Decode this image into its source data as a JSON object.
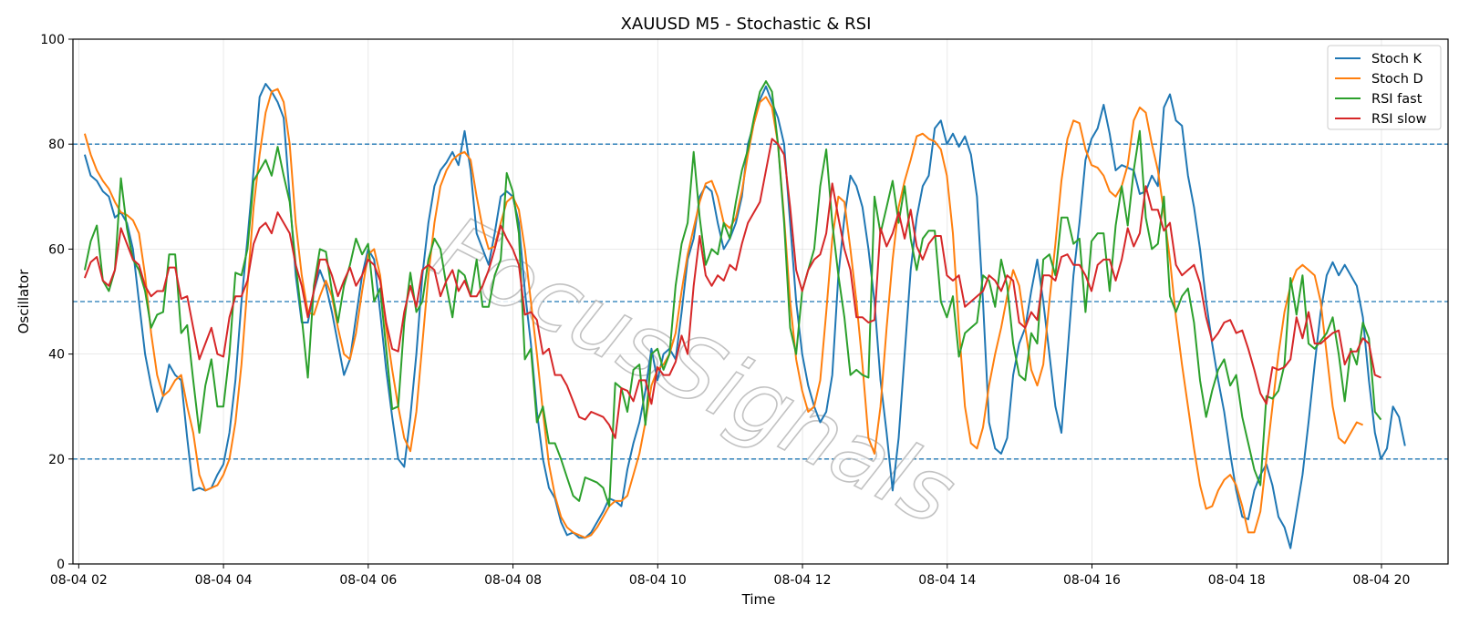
{
  "chart_data": {
    "type": "line",
    "title": "XAUUSD M5 - Stochastic & RSI",
    "xlabel": "Time",
    "ylabel": "Oscillator",
    "xlim": [
      1.92,
      20.92
    ],
    "ylim": [
      0,
      100
    ],
    "x_ticks": [
      2,
      4,
      6,
      8,
      10,
      12,
      14,
      16,
      18,
      20
    ],
    "x_tick_labels": [
      "08-04 02",
      "08-04 04",
      "08-04 06",
      "08-04 08",
      "08-04 10",
      "08-04 12",
      "08-04 14",
      "08-04 16",
      "08-04 18",
      "08-04 20"
    ],
    "y_ticks": [
      0,
      20,
      40,
      60,
      80,
      100
    ],
    "y_tick_labels": [
      "0",
      "20",
      "40",
      "60",
      "80",
      "100"
    ],
    "grid": true,
    "legend_position": "top-right",
    "watermark": "FocusSignals",
    "reference_lines": [
      {
        "y": 80,
        "style": "dashed",
        "color": "#1f77b4"
      },
      {
        "y": 50,
        "style": "dashed",
        "color": "#1f77b4"
      },
      {
        "y": 20,
        "style": "dashed",
        "color": "#1f77b4"
      }
    ],
    "x_start_hour": 2.083,
    "x_step_hours": 0.0833,
    "series": [
      {
        "name": "Stoch K",
        "color": "#1f77b4",
        "values": [
          78,
          74,
          73,
          71,
          70,
          66,
          67,
          65,
          60,
          50,
          40,
          34,
          29,
          32,
          38,
          36,
          35,
          24,
          14,
          14.5,
          14,
          14.5,
          17,
          19,
          25,
          35,
          50,
          62,
          75,
          89,
          91.5,
          90,
          88,
          85,
          70,
          55,
          46,
          46,
          52,
          56,
          53,
          48,
          42,
          36,
          39,
          47,
          55,
          60,
          58,
          48,
          37,
          28,
          20,
          18.5,
          28,
          40,
          55,
          65,
          72,
          75,
          76.5,
          78.5,
          76,
          82.5,
          75,
          63,
          60,
          57,
          63,
          70,
          71,
          70,
          65,
          52,
          42,
          29,
          20,
          14.5,
          12.5,
          8,
          5.5,
          6,
          5,
          5,
          6,
          8,
          10,
          12.5,
          12,
          11,
          18,
          23,
          27,
          33,
          41,
          35,
          40,
          41,
          39,
          48,
          58,
          62,
          70,
          72,
          71,
          65,
          60,
          62,
          65,
          70,
          80,
          84,
          88.5,
          91,
          88,
          85,
          80,
          65,
          50,
          40,
          34,
          30,
          27,
          29,
          36,
          55,
          66,
          74,
          72,
          68,
          60,
          50,
          35,
          25,
          14,
          24,
          40,
          56,
          66,
          72,
          74,
          83,
          84.5,
          80,
          82,
          79.5,
          81.5,
          78,
          70,
          50,
          27,
          22,
          21,
          24,
          36,
          42,
          45,
          52,
          58,
          50,
          40,
          30,
          25,
          40,
          55,
          65,
          77,
          81,
          83,
          87.5,
          82,
          75,
          76,
          75.5,
          75,
          70.5,
          71,
          74,
          72,
          87,
          89.5,
          84.5,
          83.5,
          74,
          68,
          60,
          50,
          42,
          35,
          29,
          21,
          14,
          9,
          8.5,
          14,
          17,
          19,
          15,
          9,
          7,
          3,
          10,
          17,
          27,
          38,
          48,
          55,
          57.5,
          55,
          57,
          55,
          53,
          47,
          35,
          25,
          20,
          22,
          30,
          28,
          22.5
        ]
      },
      {
        "name": "Stoch D",
        "color": "#ff7f0e",
        "values": [
          82,
          78,
          75,
          73,
          71.5,
          69,
          67,
          66.5,
          65.5,
          63,
          55,
          44,
          36,
          32,
          33,
          35,
          36,
          30,
          25,
          17,
          14,
          14.5,
          15,
          17,
          20,
          27,
          38,
          53,
          68,
          78,
          86,
          90,
          90.5,
          88,
          80,
          65,
          55,
          48,
          47.5,
          51,
          54,
          51,
          45,
          40,
          39,
          44,
          52,
          59,
          60,
          55,
          45,
          37,
          30,
          24,
          21.5,
          29,
          42,
          55,
          65,
          72,
          75,
          77,
          78,
          78.5,
          77,
          70,
          64,
          60,
          60.5,
          65,
          69,
          70,
          67.5,
          60,
          50,
          40,
          29,
          19,
          13,
          9,
          7,
          6,
          5.5,
          5,
          5.5,
          7,
          9,
          11,
          12,
          12,
          13,
          17,
          21,
          27,
          34,
          37,
          38,
          40,
          44,
          52,
          59,
          64,
          69,
          72.5,
          73,
          70,
          65,
          64,
          66,
          71,
          78,
          84,
          88,
          89,
          87,
          80,
          66,
          50,
          39,
          33,
          29,
          30,
          35,
          48,
          62,
          70,
          69,
          60,
          50,
          38,
          24,
          21,
          30,
          45,
          58,
          68,
          73,
          77,
          81.5,
          82,
          81,
          80.5,
          79,
          74,
          63,
          45,
          30,
          23,
          22,
          26,
          34,
          40,
          45,
          51,
          56,
          53,
          45,
          37,
          34,
          38,
          50,
          61,
          73,
          81,
          84.5,
          84,
          79,
          76,
          75.5,
          74,
          71,
          70,
          72,
          76,
          84.5,
          87,
          86,
          80,
          75,
          67,
          58,
          47,
          38,
          30,
          22,
          15,
          10.5,
          11,
          14,
          16,
          17,
          15,
          11,
          6,
          6,
          10,
          20,
          30,
          40,
          48,
          53,
          56,
          57,
          56,
          55,
          50,
          40,
          30,
          24,
          23,
          25,
          27,
          26.5
        ]
      },
      {
        "name": "RSI fast",
        "color": "#2ca02c",
        "values": [
          56,
          61.5,
          64.5,
          54,
          52,
          56,
          73.5,
          64,
          58,
          56,
          52,
          45,
          47.5,
          48,
          59,
          59,
          44,
          45.5,
          35,
          25,
          34,
          39,
          30,
          30,
          40,
          55.5,
          55,
          60,
          73,
          75,
          77,
          74,
          79.5,
          74,
          69,
          57,
          47,
          35.5,
          53,
          60,
          59.5,
          52,
          46,
          53,
          57,
          62,
          59,
          61,
          50,
          52.5,
          41,
          29.5,
          30,
          46,
          55.5,
          48,
          50,
          58,
          62,
          60,
          53,
          47,
          56,
          55,
          51,
          58,
          49,
          49,
          55,
          58,
          74.5,
          71,
          63,
          39,
          41,
          27,
          30,
          23,
          23,
          20,
          16.5,
          13,
          12,
          16.5,
          16,
          15.5,
          14.5,
          11,
          34.5,
          33.5,
          29,
          37,
          38,
          26.5,
          40,
          41,
          37,
          40,
          53,
          61,
          65,
          78.5,
          66,
          57,
          60,
          59,
          65,
          62,
          69,
          75,
          79,
          85,
          90,
          92,
          90,
          80,
          65,
          45,
          40,
          52,
          56,
          60,
          72,
          79,
          65,
          55,
          47,
          36,
          37,
          36,
          35.5,
          70,
          63,
          68,
          73,
          65,
          72,
          62,
          56,
          62,
          63.5,
          63.5,
          50,
          47,
          51,
          39.5,
          44,
          45,
          46,
          55,
          54,
          49,
          58,
          53,
          42,
          36,
          35,
          44,
          42,
          58,
          59,
          55,
          66,
          66,
          61,
          62,
          48,
          61.5,
          63,
          63,
          52,
          64.5,
          72,
          64.5,
          75,
          82.5,
          66,
          60,
          61,
          70,
          51,
          48,
          51,
          52.5,
          46,
          35,
          28,
          33,
          37,
          39,
          34,
          36,
          28,
          23,
          18,
          15,
          32,
          31.5,
          33,
          38,
          54.5,
          47.5,
          55,
          42,
          41,
          42.5,
          44,
          47,
          40,
          31,
          41,
          38,
          46,
          43,
          29,
          27.5
        ]
      },
      {
        "name": "RSI slow",
        "color": "#d62728",
        "values": [
          54.5,
          57.5,
          58.5,
          54,
          53,
          56,
          64,
          61,
          58,
          57,
          53,
          51,
          52,
          52,
          56.5,
          56.5,
          50.5,
          51,
          45,
          39,
          42,
          45,
          40,
          39.5,
          47,
          51,
          51,
          54,
          61,
          64,
          65,
          63,
          67,
          65,
          63,
          57,
          53,
          47,
          52,
          58,
          58,
          55,
          51,
          54,
          56.5,
          53,
          55,
          58,
          57,
          54,
          46,
          41,
          40.5,
          48,
          53,
          49,
          56,
          57,
          56,
          51,
          54,
          56,
          52,
          54,
          51,
          51,
          53,
          56,
          60,
          64.5,
          62,
          60,
          57,
          47.5,
          48,
          46.5,
          40,
          41,
          36,
          36,
          34,
          31,
          28,
          27.5,
          29,
          28.5,
          28,
          26.5,
          24,
          33.5,
          33,
          31,
          35,
          35,
          30.5,
          37.5,
          36,
          36,
          38.5,
          43.5,
          40,
          53,
          62.5,
          55,
          53,
          55,
          54,
          57,
          56,
          61,
          65,
          67,
          69,
          75,
          81,
          80,
          78,
          68,
          56,
          52,
          56,
          58,
          59,
          63,
          72.5,
          66,
          60,
          56,
          47,
          47,
          46,
          46.5,
          64,
          60.5,
          63,
          67,
          62,
          67.5,
          60.5,
          58,
          61,
          62.5,
          62.5,
          55,
          54,
          55,
          49,
          50,
          51,
          52,
          55,
          54,
          52,
          55,
          54,
          46,
          45,
          48,
          46.5,
          55,
          55,
          54,
          58.5,
          59,
          57,
          57,
          55,
          52,
          57,
          58,
          58,
          54,
          58,
          64,
          60.5,
          63,
          72,
          67.5,
          67.5,
          63.5,
          65,
          57,
          55,
          56,
          57,
          53.5,
          47,
          42.5,
          44,
          46,
          46.5,
          44,
          44.5,
          41,
          37,
          32.5,
          30.5,
          37.5,
          37,
          37.5,
          39,
          47,
          43,
          48,
          42,
          42,
          43,
          44,
          44.5,
          38,
          40.5,
          40.5,
          43,
          42,
          36,
          35.5
        ]
      }
    ]
  }
}
